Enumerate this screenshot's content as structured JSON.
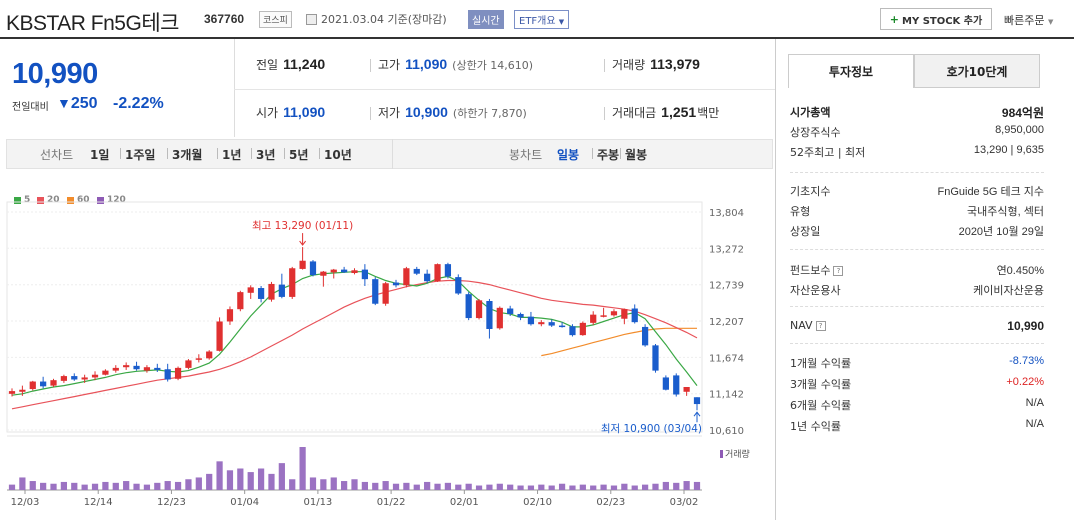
{
  "header": {
    "name": "KBSTAR Fn5G테크",
    "code": "367760",
    "market": "코스피",
    "date_text": "2021.03.04 기준(장마감)",
    "live_badge": "실시간",
    "etf_badge": "ETF개요",
    "mystock_label": "MY STOCK 추가",
    "mystock_plus": "+",
    "quick_order": "빠른주문"
  },
  "price": {
    "current": "10,990",
    "change_label": "전일대비",
    "change_arrow": "▼",
    "change_value": "250",
    "change_pct": "-2.22%"
  },
  "stats": {
    "prev_close_label": "전일",
    "prev_close": "11,240",
    "high_label": "고가",
    "high": "11,090",
    "upper_limit": "(상한가 14,610)",
    "volume_label": "거래량",
    "volume": "113,979",
    "open_label": "시가",
    "open": "11,090",
    "low_label": "저가",
    "low": "10,900",
    "lower_limit": "(하한가 7,870)",
    "amount_label": "거래대금",
    "amount": "1,251",
    "amount_unit": "백만"
  },
  "period_bar": {
    "line_label": "선차트",
    "line_items": [
      "1일",
      "1주일",
      "3개월",
      "1년",
      "3년",
      "5년",
      "10년"
    ],
    "candle_label": "봉차트",
    "candle_items": [
      "일봉",
      "주봉",
      "월봉"
    ],
    "candle_active": "일봉"
  },
  "legend": [
    {
      "label": "5",
      "color": "#3aa845"
    },
    {
      "label": "20",
      "color": "#e8535a"
    },
    {
      "label": "60",
      "color": "#f28c2b"
    },
    {
      "label": "120",
      "color": "#8e5bb5"
    }
  ],
  "chart_data": {
    "type": "candlestick",
    "title": "",
    "y_ticks": [
      "13,804",
      "13,272",
      "12,739",
      "12,207",
      "11,674",
      "11,142",
      "10,610"
    ],
    "ylim": [
      10610,
      13804
    ],
    "x_ticks": [
      "12/03",
      "12/14",
      "12/23",
      "01/04",
      "01/13",
      "01/22",
      "02/01",
      "02/10",
      "02/23",
      "03/02"
    ],
    "high_annotation": "최고 13,290 (01/11)",
    "low_annotation": "최저 10,900 (03/04)",
    "volume_label": "거래량",
    "up_color": "#e03030",
    "down_color": "#1a5dcc",
    "candles": [
      {
        "o": 11140,
        "h": 11220,
        "l": 11100,
        "c": 11180
      },
      {
        "o": 11170,
        "h": 11260,
        "l": 11110,
        "c": 11200
      },
      {
        "o": 11210,
        "h": 11330,
        "l": 11190,
        "c": 11320
      },
      {
        "o": 11320,
        "h": 11390,
        "l": 11220,
        "c": 11250
      },
      {
        "o": 11260,
        "h": 11360,
        "l": 11240,
        "c": 11340
      },
      {
        "o": 11330,
        "h": 11420,
        "l": 11300,
        "c": 11400
      },
      {
        "o": 11400,
        "h": 11440,
        "l": 11330,
        "c": 11350
      },
      {
        "o": 11350,
        "h": 11420,
        "l": 11300,
        "c": 11380
      },
      {
        "o": 11380,
        "h": 11470,
        "l": 11340,
        "c": 11420
      },
      {
        "o": 11420,
        "h": 11500,
        "l": 11410,
        "c": 11480
      },
      {
        "o": 11480,
        "h": 11560,
        "l": 11450,
        "c": 11520
      },
      {
        "o": 11530,
        "h": 11600,
        "l": 11490,
        "c": 11560
      },
      {
        "o": 11550,
        "h": 11610,
        "l": 11480,
        "c": 11500
      },
      {
        "o": 11480,
        "h": 11560,
        "l": 11450,
        "c": 11530
      },
      {
        "o": 11520,
        "h": 11580,
        "l": 11460,
        "c": 11490
      },
      {
        "o": 11500,
        "h": 11580,
        "l": 11320,
        "c": 11350
      },
      {
        "o": 11360,
        "h": 11540,
        "l": 11340,
        "c": 11520
      },
      {
        "o": 11520,
        "h": 11650,
        "l": 11500,
        "c": 11630
      },
      {
        "o": 11640,
        "h": 11720,
        "l": 11600,
        "c": 11660
      },
      {
        "o": 11660,
        "h": 11780,
        "l": 11640,
        "c": 11760
      },
      {
        "o": 11770,
        "h": 12260,
        "l": 11760,
        "c": 12200
      },
      {
        "o": 12200,
        "h": 12420,
        "l": 12150,
        "c": 12380
      },
      {
        "o": 12380,
        "h": 12650,
        "l": 12350,
        "c": 12630
      },
      {
        "o": 12620,
        "h": 12730,
        "l": 12530,
        "c": 12700
      },
      {
        "o": 12690,
        "h": 12720,
        "l": 12480,
        "c": 12530
      },
      {
        "o": 12520,
        "h": 12780,
        "l": 12490,
        "c": 12750
      },
      {
        "o": 12740,
        "h": 12900,
        "l": 12540,
        "c": 12560
      },
      {
        "o": 12560,
        "h": 13000,
        "l": 12530,
        "c": 12980
      },
      {
        "o": 12970,
        "h": 13290,
        "l": 12960,
        "c": 13090
      },
      {
        "o": 13080,
        "h": 13100,
        "l": 12860,
        "c": 12880
      },
      {
        "o": 12870,
        "h": 12940,
        "l": 12710,
        "c": 12930
      },
      {
        "o": 12920,
        "h": 12970,
        "l": 12830,
        "c": 12960
      },
      {
        "o": 12960,
        "h": 13000,
        "l": 12910,
        "c": 12920
      },
      {
        "o": 12910,
        "h": 12980,
        "l": 12890,
        "c": 12950
      },
      {
        "o": 12960,
        "h": 13040,
        "l": 12720,
        "c": 12820
      },
      {
        "o": 12820,
        "h": 12850,
        "l": 12440,
        "c": 12460
      },
      {
        "o": 12460,
        "h": 12780,
        "l": 12430,
        "c": 12760
      },
      {
        "o": 12770,
        "h": 12810,
        "l": 12700,
        "c": 12730
      },
      {
        "o": 12730,
        "h": 13000,
        "l": 12700,
        "c": 12980
      },
      {
        "o": 12970,
        "h": 13000,
        "l": 12880,
        "c": 12900
      },
      {
        "o": 12900,
        "h": 12960,
        "l": 12760,
        "c": 12790
      },
      {
        "o": 12790,
        "h": 13050,
        "l": 12780,
        "c": 13040
      },
      {
        "o": 13040,
        "h": 13060,
        "l": 12830,
        "c": 12860
      },
      {
        "o": 12850,
        "h": 12890,
        "l": 12590,
        "c": 12610
      },
      {
        "o": 12600,
        "h": 12630,
        "l": 12220,
        "c": 12250
      },
      {
        "o": 12250,
        "h": 12530,
        "l": 12230,
        "c": 12510
      },
      {
        "o": 12500,
        "h": 12530,
        "l": 11950,
        "c": 12090
      },
      {
        "o": 12100,
        "h": 12420,
        "l": 12080,
        "c": 12400
      },
      {
        "o": 12390,
        "h": 12430,
        "l": 12280,
        "c": 12310
      },
      {
        "o": 12310,
        "h": 12330,
        "l": 12220,
        "c": 12260
      },
      {
        "o": 12270,
        "h": 12340,
        "l": 12140,
        "c": 12160
      },
      {
        "o": 12160,
        "h": 12220,
        "l": 12130,
        "c": 12190
      },
      {
        "o": 12190,
        "h": 12230,
        "l": 12120,
        "c": 12140
      },
      {
        "o": 12140,
        "h": 12190,
        "l": 12110,
        "c": 12130
      },
      {
        "o": 12130,
        "h": 12160,
        "l": 11980,
        "c": 12000
      },
      {
        "o": 12000,
        "h": 12200,
        "l": 11990,
        "c": 12180
      },
      {
        "o": 12180,
        "h": 12350,
        "l": 12150,
        "c": 12300
      },
      {
        "o": 12290,
        "h": 12400,
        "l": 12260,
        "c": 12290
      },
      {
        "o": 12290,
        "h": 12380,
        "l": 12270,
        "c": 12350
      },
      {
        "o": 12240,
        "h": 12390,
        "l": 12160,
        "c": 12380
      },
      {
        "o": 12390,
        "h": 12450,
        "l": 12170,
        "c": 12190
      },
      {
        "o": 12120,
        "h": 12160,
        "l": 11830,
        "c": 11850
      },
      {
        "o": 11850,
        "h": 11870,
        "l": 11450,
        "c": 11480
      },
      {
        "o": 11380,
        "h": 11410,
        "l": 11190,
        "c": 11200
      },
      {
        "o": 11410,
        "h": 11440,
        "l": 11100,
        "c": 11130
      },
      {
        "o": 11170,
        "h": 11240,
        "l": 11110,
        "c": 11240
      },
      {
        "o": 11090,
        "h": 11090,
        "l": 10900,
        "c": 10990
      }
    ],
    "ma5": [
      11120,
      11140,
      11180,
      11210,
      11240,
      11260,
      11290,
      11320,
      11350,
      11380,
      11420,
      11450,
      11470,
      11480,
      11490,
      11470,
      11460,
      11480,
      11530,
      11590,
      11720,
      11900,
      12090,
      12280,
      12440,
      12600,
      12680,
      12740,
      12830,
      12880,
      12900,
      12910,
      12920,
      12930,
      12930,
      12860,
      12800,
      12760,
      12740,
      12720,
      12760,
      12830,
      12860,
      12790,
      12640,
      12510,
      12390,
      12330,
      12310,
      12260,
      12260,
      12250,
      12230,
      12190,
      12120,
      12120,
      12150,
      12200,
      12250,
      12300,
      12330,
      12240,
      12050,
      11860,
      11650,
      11460,
      11260
    ],
    "ma20": [
      10920,
      10950,
      10980,
      11010,
      11040,
      11070,
      11100,
      11130,
      11160,
      11190,
      11220,
      11250,
      11280,
      11310,
      11340,
      11360,
      11380,
      11400,
      11430,
      11460,
      11500,
      11550,
      11610,
      11680,
      11760,
      11840,
      11920,
      12000,
      12090,
      12170,
      12250,
      12330,
      12410,
      12480,
      12540,
      12590,
      12630,
      12670,
      12710,
      12740,
      12770,
      12790,
      12800,
      12800,
      12790,
      12770,
      12740,
      12700,
      12660,
      12620,
      12580,
      12540,
      12510,
      12490,
      12470,
      12450,
      12440,
      12420,
      12400,
      12380,
      12350,
      12300,
      12240,
      12180,
      12110,
      12040,
      11960
    ],
    "ma60": [
      null,
      null,
      null,
      null,
      null,
      null,
      null,
      null,
      null,
      null,
      null,
      null,
      null,
      null,
      null,
      null,
      null,
      null,
      null,
      null,
      null,
      null,
      null,
      null,
      null,
      null,
      null,
      null,
      null,
      null,
      null,
      null,
      null,
      null,
      null,
      null,
      null,
      null,
      null,
      null,
      null,
      null,
      null,
      null,
      null,
      null,
      null,
      null,
      null,
      null,
      null,
      11700,
      11730,
      11770,
      11810,
      11850,
      11890,
      11930,
      11970,
      12010,
      12040,
      12070,
      12090,
      12100,
      12100,
      12100,
      12100
    ],
    "volume": [
      6,
      14,
      10,
      8,
      7,
      9,
      8,
      6,
      7,
      9,
      8,
      10,
      7,
      6,
      8,
      10,
      9,
      12,
      14,
      18,
      32,
      22,
      24,
      20,
      24,
      18,
      30,
      12,
      48,
      14,
      12,
      14,
      10,
      12,
      9,
      8,
      10,
      7,
      8,
      6,
      9,
      7,
      8,
      6,
      7,
      5,
      6,
      7,
      6,
      5,
      5,
      6,
      5,
      7,
      5,
      6,
      5,
      6,
      5,
      7,
      5,
      6,
      7,
      9,
      8,
      10,
      9
    ]
  },
  "right_panel": {
    "tab_info": "투자정보",
    "tab_orderbook": "호가10단계",
    "rows1": [
      {
        "k": "시가총액",
        "v": "984억원",
        "bold": true
      },
      {
        "k": "상장주식수",
        "v": "8,950,000"
      },
      {
        "k": "52주최고 | 최저",
        "v": "13,290 | 9,635"
      }
    ],
    "rows2": [
      {
        "k": "기초지수",
        "v": "FnGuide 5G 테크 지수"
      },
      {
        "k": "유형",
        "v": "국내주식형, 섹터"
      },
      {
        "k": "상장일",
        "v": "2020년 10월 29일"
      }
    ],
    "rows3": [
      {
        "k": "펀드보수",
        "v": "연0.450%"
      },
      {
        "k": "자산운용사",
        "v": "케이비자산운용"
      }
    ],
    "nav_label": "NAV",
    "nav_value": "10,990",
    "help_mark": "?",
    "returns": [
      {
        "k": "1개월 수익률",
        "v": "-8.73%",
        "color": "blue"
      },
      {
        "k": "3개월 수익률",
        "v": "+0.22%",
        "color": "red"
      },
      {
        "k": "6개월 수익률",
        "v": "N/A",
        "color": "plain"
      },
      {
        "k": "1년 수익률",
        "v": "N/A",
        "color": "plain"
      }
    ]
  }
}
